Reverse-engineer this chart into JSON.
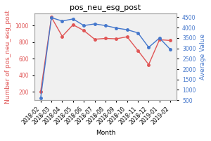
{
  "title": "pos_neu_esg_post",
  "xlabel": "Month",
  "ylabel_left": "Number of pos_neu_esg_post",
  "ylabel_right": "Average Value",
  "months": [
    "2018-02",
    "2018-03",
    "2018-04",
    "2018-05",
    "2018-06",
    "2018-07",
    "2018-08",
    "2018-09",
    "2018-10",
    "2018-11",
    "2018-12",
    "2019-01",
    "2019-02"
  ],
  "red_values": [
    200,
    1100,
    870,
    1010,
    940,
    835,
    845,
    840,
    865,
    700,
    530,
    830,
    820
  ],
  "blue_values": [
    600,
    4480,
    4320,
    4420,
    4100,
    4180,
    4100,
    3980,
    3900,
    3750,
    3050,
    3500,
    2950
  ],
  "red_color": "#e05555",
  "blue_color": "#4477cc",
  "ylim_left": [
    100,
    1150
  ],
  "ylim_right": [
    500,
    4700
  ],
  "yticks_left": [
    200,
    400,
    600,
    800,
    1000
  ],
  "yticks_right": [
    500,
    1000,
    1500,
    2000,
    2500,
    3000,
    3500,
    4000,
    4500
  ],
  "bg_color": "#f0f0f0",
  "title_fontsize": 8,
  "label_fontsize": 6.5,
  "tick_fontsize": 5.5
}
